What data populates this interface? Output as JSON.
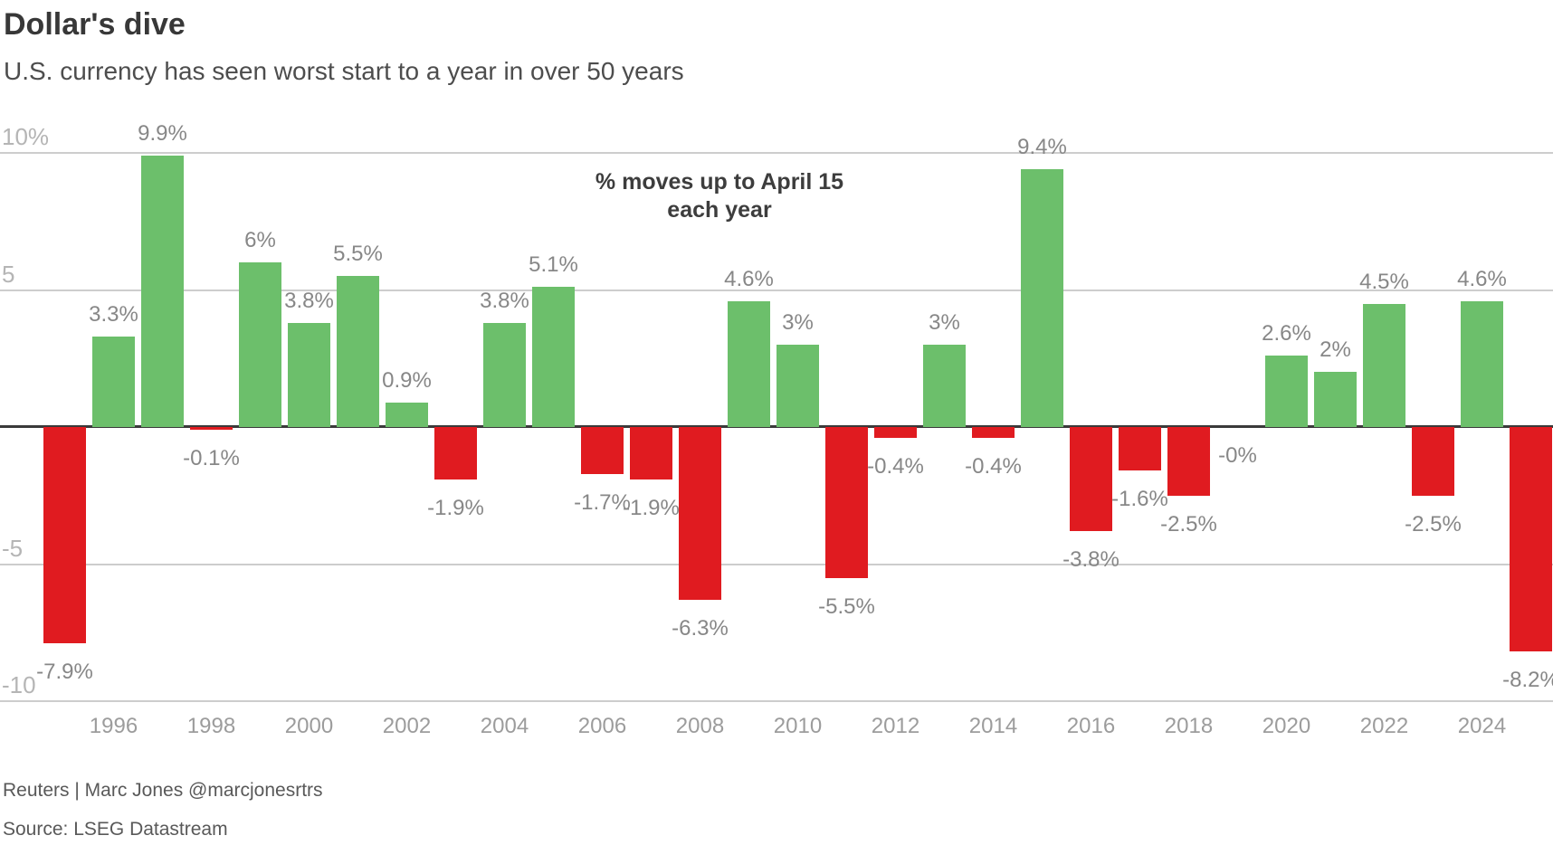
{
  "header": {
    "title": "Dollar's dive",
    "subtitle": "U.S. currency has seen worst start to a year in over 50 years"
  },
  "annotation": {
    "line1": "% moves up to April 15",
    "line2": "each year"
  },
  "footer": {
    "credit": "Reuters | Marc Jones @marcjonesrtrs",
    "source": "Source: LSEG Datastream"
  },
  "colors": {
    "positive": "#6cbf6b",
    "negative": "#e01b20",
    "zero_line": "#3a3a3a",
    "gridline": "#cdcdcd",
    "y_tick_label": "#b5b5b5",
    "x_tick_label": "#9c9c9c",
    "value_label": "#878787"
  },
  "chart_data": {
    "type": "bar",
    "title": "Dollar's dive",
    "subtitle": "U.S. currency has seen worst start to a year in over 50 years",
    "annotation": "% moves up to April 15 each year",
    "x": [
      1995,
      1996,
      1997,
      1998,
      1999,
      2000,
      2001,
      2002,
      2003,
      2004,
      2005,
      2006,
      2007,
      2008,
      2009,
      2010,
      2011,
      2012,
      2013,
      2014,
      2015,
      2016,
      2017,
      2018,
      2019,
      2020,
      2021,
      2022,
      2023,
      2024,
      2025
    ],
    "values": [
      -7.9,
      3.3,
      9.9,
      -0.1,
      6,
      3.8,
      5.5,
      0.9,
      -1.9,
      3.8,
      5.1,
      -1.7,
      -1.9,
      -6.3,
      4.6,
      3,
      -5.5,
      -0.4,
      3,
      -0.4,
      9.4,
      -3.8,
      -1.6,
      -2.5,
      0,
      2.6,
      2,
      4.5,
      -2.5,
      4.6,
      -8.2
    ],
    "labels": [
      "-7.9%",
      "3.3%",
      "9.9%",
      "-0.1%",
      "6%",
      "3.8%",
      "5.5%",
      "0.9%",
      "-1.9%",
      "3.8%",
      "5.1%",
      "-1.7%",
      "-1.9%",
      "-6.3%",
      "4.6%",
      "3%",
      "-5.5%",
      "-0.4%",
      "3%",
      "-0.4%",
      "9.4%",
      "-3.8%",
      "-1.6%",
      "-2.5%",
      "-0%",
      "2.6%",
      "2%",
      "4.5%",
      "-2.5%",
      "4.6%",
      "-8.2%"
    ],
    "x_tick_labels": [
      "1996",
      "1998",
      "2000",
      "2002",
      "2004",
      "2006",
      "2008",
      "2010",
      "2012",
      "2014",
      "2016",
      "2018",
      "2020",
      "2022",
      "2024"
    ],
    "y_ticks": [
      {
        "value": 10,
        "label": "10%"
      },
      {
        "value": 5,
        "label": "5"
      },
      {
        "value": -5,
        "label": "-5"
      },
      {
        "value": -10,
        "label": "-10"
      }
    ],
    "ylim": [
      -10,
      10
    ],
    "grid": true,
    "legend": false,
    "xlabel": "",
    "ylabel": ""
  }
}
